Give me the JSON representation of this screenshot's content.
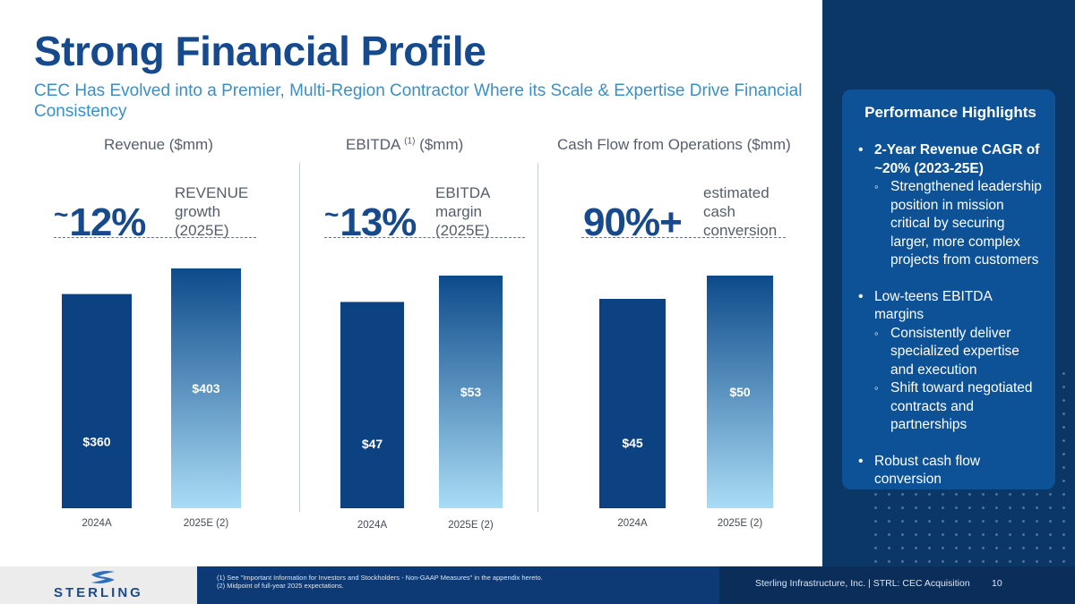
{
  "title": "Strong Financial Profile",
  "subtitle": "CEC Has Evolved into a Premier, Multi-Region Contractor Where its Scale & Expertise Drive Financial Consistency",
  "highlights": {
    "title": "Performance Highlights",
    "items": [
      {
        "text": "2-Year Revenue CAGR of ~20% (2023-25E)",
        "subs": [
          "Strengthened leadership position in mission critical by securing larger, more complex projects from customers"
        ]
      },
      {
        "text": "Low-teens EBITDA margins",
        "subs": [
          "Consistently deliver specialized expertise and execution",
          "Shift toward negotiated contracts and partnerships"
        ]
      },
      {
        "text": "Robust cash flow conversion",
        "subs": []
      }
    ]
  },
  "metrics": {
    "revenue": {
      "tilde": "~",
      "value": "12%",
      "label": [
        "REVENUE",
        "growth",
        "(2025E)"
      ]
    },
    "ebitda": {
      "tilde": "~",
      "value": "13%",
      "label": [
        "EBITDA",
        "margin",
        "(2025E)"
      ]
    },
    "cash": {
      "tilde": "",
      "value": "90%+",
      "label": [
        "estimated",
        "cash",
        "conversion"
      ]
    }
  },
  "chart_data": [
    {
      "type": "bar",
      "title": "Revenue ($mm)",
      "categories": [
        "2024A",
        "2025E (2)"
      ],
      "values": [
        360,
        403
      ],
      "data_labels": [
        "$360",
        "$403"
      ],
      "ylim": [
        0,
        420
      ]
    },
    {
      "type": "bar",
      "title_main": "EBITDA",
      "title_sup": "(1)",
      "title_tail": " ($mm)",
      "categories": [
        "2024A",
        "2025E (2)"
      ],
      "values": [
        47,
        53
      ],
      "data_labels": [
        "$47",
        "$53"
      ],
      "ylim": [
        0,
        55
      ]
    },
    {
      "type": "bar",
      "title": "Cash Flow from Operations ($mm)",
      "categories": [
        "2024A",
        "2025E (2)"
      ],
      "values": [
        45,
        50
      ],
      "data_labels": [
        "$45",
        "$50"
      ],
      "ylim": [
        0,
        52
      ]
    }
  ],
  "colors": {
    "bar_dark": "#0c4281",
    "bar_grad_top": "#0d4a8a",
    "bar_grad_bottom": "#a9dcf5"
  },
  "footer": {
    "logo": "STERLING",
    "footnotes": [
      "(1) See \"Important Information for Investors and Stockholders - Non-GAAP Measures\" in the appendix hereto.",
      "(2) Midpoint of full-year 2025 expectations."
    ],
    "company": "Sterling Infrastructure, Inc. | STRL: CEC Acquisition",
    "page": "10"
  }
}
